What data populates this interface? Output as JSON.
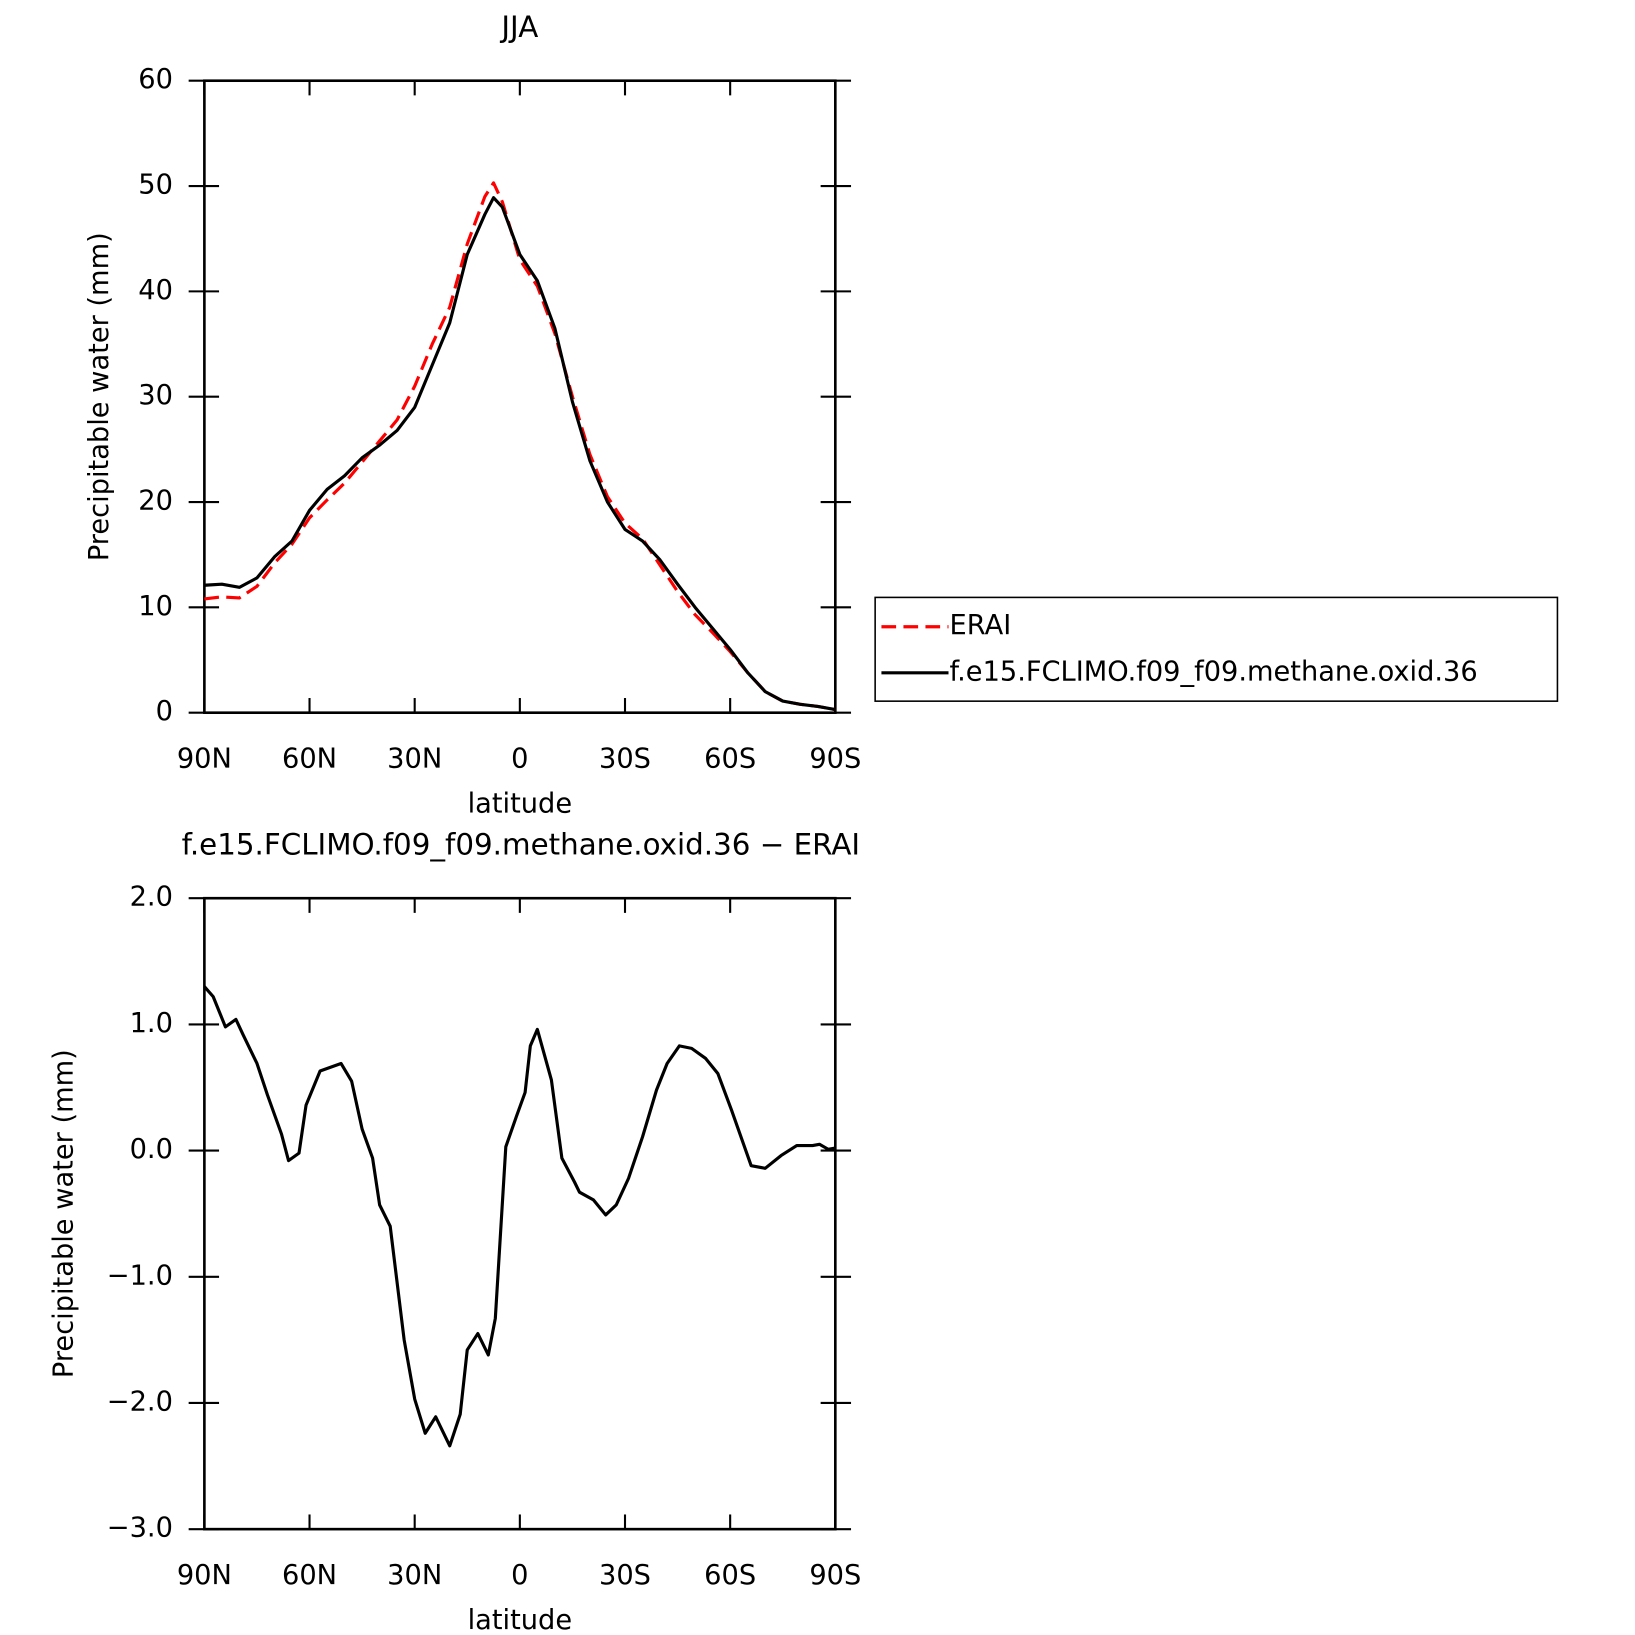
{
  "chart_data": [
    {
      "type": "line",
      "title": "JJA",
      "xlabel": "latitude",
      "ylabel": "Precipitable water (mm)",
      "x": [
        90,
        85,
        80,
        75,
        70,
        65,
        60,
        55,
        50,
        45,
        40,
        35,
        30,
        25,
        20,
        15,
        10,
        7.5,
        5,
        0,
        -5,
        -10,
        -15,
        -20,
        -25,
        -30,
        -35,
        -40,
        -45,
        -50,
        -55,
        -60,
        -65,
        -70,
        -75,
        -80,
        -85,
        -90
      ],
      "series": [
        {
          "name": "ERAI",
          "color": "#ff0000",
          "style": "dashed",
          "values": [
            10.8,
            11.0,
            10.9,
            12.0,
            14.2,
            16.0,
            18.5,
            20.2,
            21.8,
            23.8,
            25.8,
            27.8,
            31.0,
            35.0,
            38.5,
            44.5,
            49.0,
            50.3,
            48.5,
            43.0,
            40.5,
            36.0,
            30.0,
            24.5,
            20.5,
            18.0,
            16.5,
            14.0,
            11.5,
            9.3,
            7.6,
            5.8,
            3.8,
            2.0,
            1.1,
            0.8,
            0.6,
            0.3
          ]
        },
        {
          "name": "f.e15.FCLIMO.f09_f09.methane.oxid.36",
          "color": "#000000",
          "style": "solid",
          "values": [
            12.1,
            12.2,
            11.9,
            12.8,
            14.8,
            16.3,
            19.2,
            21.2,
            22.5,
            24.2,
            25.4,
            26.8,
            29.0,
            33.0,
            37.0,
            43.5,
            47.3,
            48.9,
            48.0,
            43.5,
            41.0,
            36.5,
            29.5,
            23.9,
            20.0,
            17.4,
            16.3,
            14.5,
            12.2,
            10.0,
            8.0,
            6.0,
            3.8,
            2.0,
            1.1,
            0.8,
            0.6,
            0.3
          ]
        }
      ],
      "xlim": [
        90,
        -90
      ],
      "xticks": [
        {
          "value": 90,
          "label": "90N"
        },
        {
          "value": 60,
          "label": "60N"
        },
        {
          "value": 30,
          "label": "30N"
        },
        0,
        {
          "value": -30,
          "label": "30S"
        },
        {
          "value": -60,
          "label": "60S"
        },
        {
          "value": -90,
          "label": "90S"
        }
      ],
      "ylim": [
        0,
        60
      ],
      "yticks": [
        0,
        10,
        20,
        30,
        40,
        50,
        60
      ],
      "legend": "right"
    },
    {
      "type": "line",
      "title": "f.e15.FCLIMO.f09_f09.methane.oxid.36 − ERAI",
      "xlabel": "latitude",
      "ylabel": "Precipitable water (mm)",
      "x": [
        90,
        87.5,
        84,
        81,
        79,
        75,
        72,
        68,
        66,
        63,
        61,
        57,
        53,
        51,
        48,
        45,
        42,
        40,
        37,
        33,
        30,
        27,
        24,
        20,
        17,
        15,
        12,
        9,
        7,
        4,
        1,
        -1.5,
        -3,
        -5,
        -9,
        -12,
        -15.6,
        -17,
        -21,
        -24.5,
        -27.5,
        -31,
        -35,
        -39,
        -42,
        -45.5,
        -49,
        -53,
        -56.5,
        -60.4,
        -66,
        -70,
        -74.5,
        -79,
        -83.5,
        -85.5,
        -88,
        -90
      ],
      "series": [
        {
          "color": "#000000",
          "style": "solid",
          "values": [
            1.3,
            1.22,
            0.98,
            1.04,
            0.92,
            0.69,
            0.44,
            0.13,
            -0.08,
            -0.02,
            0.36,
            0.63,
            0.67,
            0.69,
            0.55,
            0.17,
            -0.06,
            -0.43,
            -0.6,
            -1.5,
            -1.97,
            -2.24,
            -2.11,
            -2.34,
            -2.09,
            -1.58,
            -1.45,
            -1.62,
            -1.33,
            0.03,
            0.27,
            0.46,
            0.83,
            0.96,
            0.56,
            -0.06,
            -0.25,
            -0.33,
            -0.39,
            -0.51,
            -0.43,
            -0.22,
            0.11,
            0.48,
            0.69,
            0.83,
            0.81,
            0.73,
            0.61,
            0.32,
            -0.12,
            -0.14,
            -0.04,
            0.04,
            0.04,
            0.05,
            0.01,
            0.02
          ]
        }
      ],
      "xlim": [
        90,
        -90
      ],
      "xticks": [
        {
          "value": 90,
          "label": "90N"
        },
        {
          "value": 60,
          "label": "60N"
        },
        {
          "value": 30,
          "label": "30N"
        },
        0,
        {
          "value": -30,
          "label": "30S"
        },
        {
          "value": -60,
          "label": "60S"
        },
        {
          "value": -90,
          "label": "90S"
        }
      ],
      "ylim": [
        -3,
        2
      ],
      "yticks": [
        {
          "value": -3,
          "label": "−3.0"
        },
        {
          "value": -2,
          "label": "−2.0"
        },
        {
          "value": -1,
          "label": "−1.0"
        },
        {
          "value": 0,
          "label": "0.0"
        },
        {
          "value": 1,
          "label": "1.0"
        },
        {
          "value": 2,
          "label": "2.0"
        }
      ]
    }
  ]
}
